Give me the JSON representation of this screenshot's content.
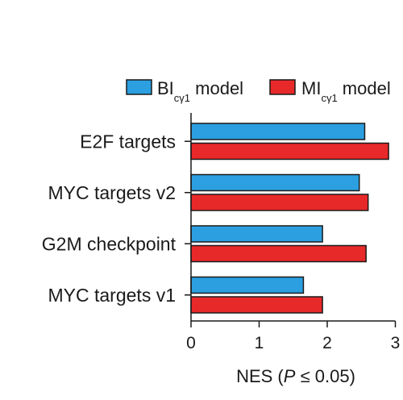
{
  "chart_data": {
    "type": "bar",
    "orientation": "horizontal",
    "categories": [
      "E2F targets",
      "MYC targets v2",
      "G2M checkpoint",
      "MYC targets v1"
    ],
    "series": [
      {
        "name": "BIcγ1 model",
        "name_main": "BI",
        "name_sub": "cγ1",
        "name_tail": " model",
        "color": "#2b9fe0",
        "values": [
          2.55,
          2.47,
          1.93,
          1.65
        ]
      },
      {
        "name": "MIcγ1 model",
        "name_main": "MI",
        "name_sub": "cγ1",
        "name_tail": " model",
        "color": "#e8292a",
        "values": [
          2.9,
          2.6,
          2.57,
          1.93
        ]
      }
    ],
    "xlabel": "NES (P ≤ 0.05)",
    "xlabel_parts": {
      "before": "NES (",
      "italic": "P",
      "after": " ≤ 0.05)"
    },
    "xlim": [
      0,
      3
    ],
    "xticks": [
      0,
      1,
      2,
      3
    ],
    "legend_position": "top",
    "grid": false
  }
}
